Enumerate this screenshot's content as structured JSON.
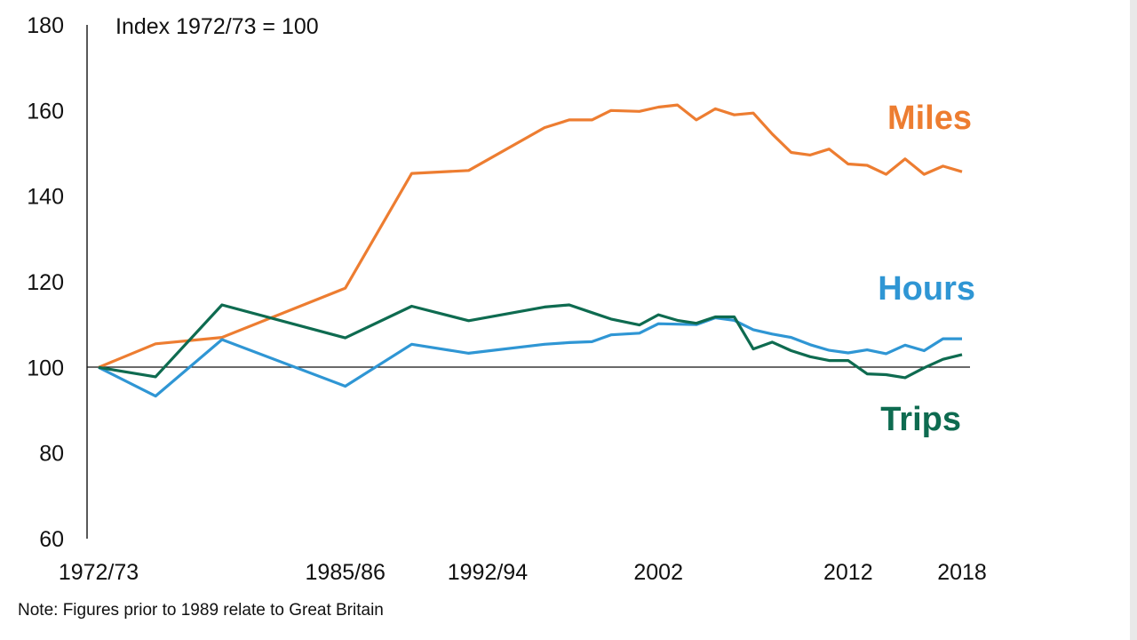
{
  "chart_data": {
    "type": "line",
    "units_label": "Index 1972/73 = 100",
    "ylim": [
      60,
      180
    ],
    "y_ticks": [
      "180",
      "160",
      "140",
      "120",
      "100",
      "80",
      "60"
    ],
    "xlim": [
      1972.5,
      2018
    ],
    "x_ticks": [
      {
        "x": 1972.5,
        "label": "1972/73"
      },
      {
        "x": 1985.5,
        "label": "1985/86"
      },
      {
        "x": 1993,
        "label": "1992/94"
      },
      {
        "x": 2002,
        "label": "2002"
      },
      {
        "x": 2012,
        "label": "2012"
      },
      {
        "x": 2018,
        "label": "2018"
      }
    ],
    "reference_line": 100,
    "grid": false,
    "series": [
      {
        "name": "Miles",
        "color": "#ed7d31",
        "points": [
          [
            1972.5,
            100
          ],
          [
            1975.5,
            105.5
          ],
          [
            1979,
            107
          ],
          [
            1985.5,
            118.5
          ],
          [
            1989,
            145.3
          ],
          [
            1992,
            146
          ],
          [
            1996,
            156
          ],
          [
            1997.3,
            157.8
          ],
          [
            1998.5,
            157.8
          ],
          [
            1999.5,
            160
          ],
          [
            2001,
            159.8
          ],
          [
            2002,
            160.8
          ],
          [
            2003,
            161.3
          ],
          [
            2004,
            157.8
          ],
          [
            2005,
            160.4
          ],
          [
            2006,
            159
          ],
          [
            2007,
            159.4
          ],
          [
            2008,
            154.5
          ],
          [
            2009,
            150.2
          ],
          [
            2010,
            149.6
          ],
          [
            2011,
            151
          ],
          [
            2012,
            147.5
          ],
          [
            2013,
            147.2
          ],
          [
            2014,
            145.1
          ],
          [
            2015,
            148.7
          ],
          [
            2016,
            145.1
          ],
          [
            2017,
            147
          ],
          [
            2018,
            145.7
          ]
        ]
      },
      {
        "name": "Hours",
        "color": "#2f96d4",
        "points": [
          [
            1972.5,
            100
          ],
          [
            1975.5,
            93.3
          ],
          [
            1979,
            106.5
          ],
          [
            1985.5,
            95.6
          ],
          [
            1989,
            105.4
          ],
          [
            1992,
            103.3
          ],
          [
            1996,
            105.4
          ],
          [
            1997.3,
            105.8
          ],
          [
            1998.5,
            106
          ],
          [
            1999.5,
            107.6
          ],
          [
            2001,
            108
          ],
          [
            2002,
            110.2
          ],
          [
            2003,
            110.1
          ],
          [
            2004,
            110
          ],
          [
            2005,
            111.6
          ],
          [
            2006,
            111
          ],
          [
            2007,
            108.8
          ],
          [
            2008,
            107.8
          ],
          [
            2009,
            107
          ],
          [
            2010,
            105.3
          ],
          [
            2011,
            104
          ],
          [
            2012,
            103.4
          ],
          [
            2013,
            104.1
          ],
          [
            2014,
            103.2
          ],
          [
            2015,
            105.2
          ],
          [
            2016,
            103.9
          ],
          [
            2017,
            106.7
          ],
          [
            2018,
            106.7
          ]
        ]
      },
      {
        "name": "Trips",
        "color": "#0e6b50",
        "points": [
          [
            1972.5,
            100
          ],
          [
            1975.5,
            97.8
          ],
          [
            1979,
            114.6
          ],
          [
            1985.5,
            106.9
          ],
          [
            1989,
            114.3
          ],
          [
            1992,
            110.9
          ],
          [
            1996,
            114.1
          ],
          [
            1997.3,
            114.6
          ],
          [
            1998.5,
            112.8
          ],
          [
            1999.5,
            111.3
          ],
          [
            2001,
            109.9
          ],
          [
            2002,
            112.3
          ],
          [
            2003,
            111
          ],
          [
            2004,
            110.3
          ],
          [
            2005,
            111.8
          ],
          [
            2006,
            111.8
          ],
          [
            2007,
            104.3
          ],
          [
            2008,
            105.9
          ],
          [
            2009,
            103.9
          ],
          [
            2010,
            102.5
          ],
          [
            2011,
            101.6
          ],
          [
            2012,
            101.6
          ],
          [
            2013,
            98.5
          ],
          [
            2014,
            98.3
          ],
          [
            2015,
            97.6
          ],
          [
            2016,
            99.9
          ],
          [
            2017,
            101.9
          ],
          [
            2018,
            103
          ]
        ]
      }
    ]
  },
  "note": "Note: Figures prior to 1989 relate to Great Britain"
}
